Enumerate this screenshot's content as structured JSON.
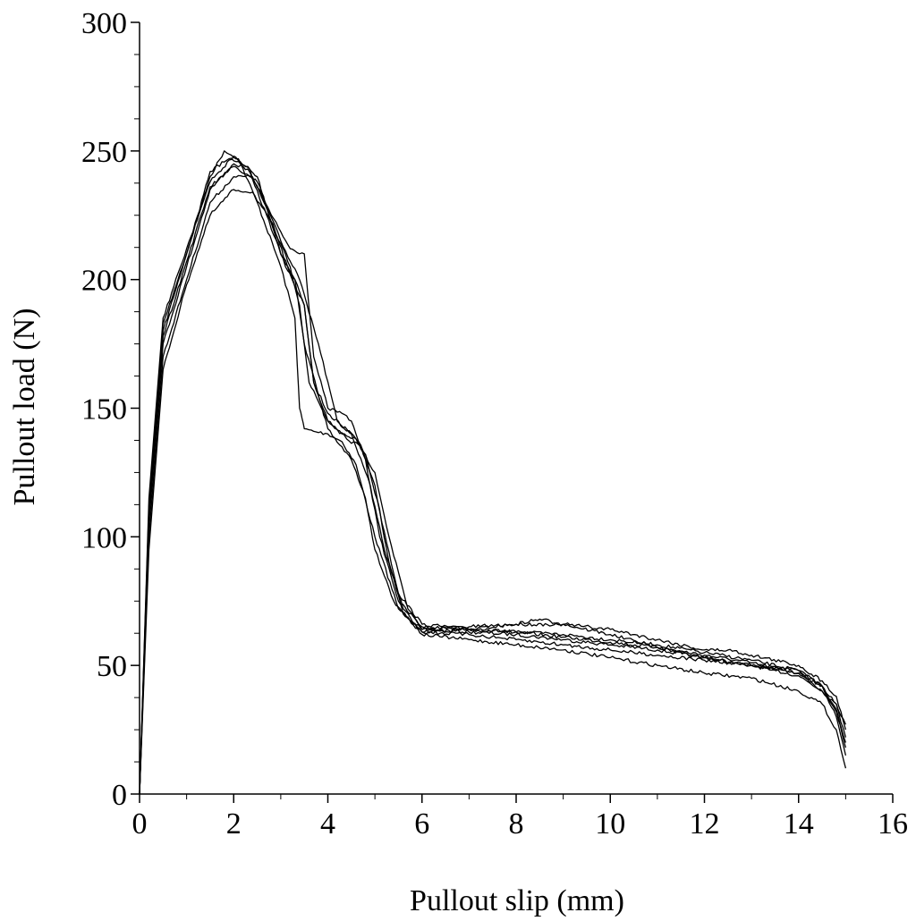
{
  "chart_data": {
    "type": "line",
    "title": "",
    "xlabel": "Pullout slip (mm)",
    "ylabel": "Pullout load (N)",
    "xlim": [
      0,
      16
    ],
    "ylim": [
      0,
      300
    ],
    "x_major_ticks": [
      0,
      2,
      4,
      6,
      8,
      10,
      12,
      14,
      16
    ],
    "y_major_ticks": [
      0,
      50,
      100,
      150,
      200,
      250,
      300
    ],
    "x_tick_labels": [
      "0",
      "2",
      "4",
      "6",
      "8",
      "10",
      "12",
      "14",
      "16"
    ],
    "y_tick_labels": [
      "0",
      "50",
      "100",
      "150",
      "200",
      "250",
      "300"
    ],
    "minor_ticks": true,
    "grid": false,
    "legend": "none",
    "line_color": "#000000",
    "series": [
      {
        "x": [
          0,
          0.2,
          0.5,
          1.0,
          1.5,
          1.8,
          2.1,
          2.5,
          3.0,
          3.3,
          3.4,
          3.5,
          3.7,
          4.0,
          4.3,
          4.6,
          5.0,
          5.5,
          6.0,
          7.0,
          8.0,
          9.0,
          10.0,
          11.0,
          12.0,
          13.0,
          14.0,
          14.5,
          14.8,
          15.0
        ],
        "y": [
          0,
          110,
          180,
          210,
          240,
          250,
          247,
          230,
          205,
          185,
          150,
          142,
          141,
          140,
          137,
          128,
          100,
          72,
          64,
          63,
          62,
          60,
          58,
          56,
          53,
          50,
          46,
          40,
          35,
          27
        ]
      },
      {
        "x": [
          0,
          0.2,
          0.5,
          1.0,
          1.5,
          2.0,
          2.3,
          2.7,
          3.1,
          3.3,
          3.5,
          3.7,
          4.0,
          4.3,
          4.6,
          4.8,
          5.1,
          5.5,
          6.0,
          7.0,
          8.0,
          9.0,
          10.0,
          11.0,
          12.0,
          13.0,
          14.0,
          14.5,
          14.8,
          15.0
        ],
        "y": [
          0,
          105,
          175,
          205,
          235,
          245,
          243,
          225,
          205,
          200,
          190,
          160,
          145,
          140,
          138,
          132,
          110,
          78,
          66,
          64,
          63,
          61,
          59,
          57,
          54,
          51,
          47,
          42,
          33,
          18
        ]
      },
      {
        "x": [
          0,
          0.2,
          0.5,
          1.0,
          1.5,
          2.0,
          2.4,
          2.8,
          3.2,
          3.5,
          3.7,
          4.0,
          4.3,
          4.5,
          4.8,
          5.1,
          5.5,
          6.0,
          7.0,
          8.0,
          9.0,
          10.0,
          11.0,
          12.0,
          13.0,
          14.0,
          14.5,
          14.8,
          15.0
        ],
        "y": [
          0,
          100,
          170,
          200,
          230,
          240,
          240,
          225,
          212,
          210,
          170,
          150,
          148,
          145,
          130,
          100,
          75,
          65,
          64,
          63,
          62,
          60,
          58,
          55,
          52,
          48,
          42,
          30,
          15
        ]
      },
      {
        "x": [
          0,
          0.2,
          0.5,
          1.0,
          1.5,
          2.0,
          2.4,
          2.8,
          3.2,
          3.4,
          3.6,
          4.0,
          4.4,
          4.7,
          5.0,
          5.3,
          5.6,
          6.0,
          7.0,
          8.0,
          8.5,
          9.0,
          10.0,
          11.0,
          12.0,
          13.0,
          14.0,
          14.5,
          14.8,
          15.0
        ],
        "y": [
          0,
          95,
          165,
          198,
          225,
          235,
          234,
          222,
          205,
          190,
          160,
          145,
          138,
          135,
          120,
          90,
          70,
          63,
          64,
          66,
          68,
          66,
          62,
          57,
          53,
          50,
          48,
          42,
          35,
          22
        ]
      },
      {
        "x": [
          0,
          0.2,
          0.5,
          1.0,
          1.5,
          2.0,
          2.5,
          3.0,
          3.3,
          3.5,
          4.0,
          4.3,
          4.5,
          4.8,
          5.0,
          5.4,
          6.0,
          7.0,
          8.0,
          9.0,
          10.0,
          11.0,
          12.0,
          13.0,
          14.0,
          14.5,
          14.8,
          15.0
        ],
        "y": [
          0,
          115,
          185,
          212,
          238,
          248,
          240,
          210,
          200,
          175,
          142,
          135,
          130,
          115,
          95,
          75,
          62,
          60,
          58,
          56,
          53,
          50,
          47,
          45,
          40,
          35,
          25,
          10
        ]
      },
      {
        "x": [
          0,
          0.2,
          0.5,
          1.0,
          1.5,
          2.0,
          2.5,
          3.0,
          3.4,
          3.8,
          4.2,
          4.6,
          5.0,
          5.3,
          5.7,
          6.0,
          7.0,
          8.0,
          9.0,
          10.0,
          11.0,
          12.0,
          12.5,
          13.0,
          14.0,
          14.5,
          14.8,
          15.0
        ],
        "y": [
          0,
          108,
          178,
          207,
          236,
          244,
          238,
          215,
          200,
          175,
          145,
          138,
          125,
          100,
          72,
          64,
          65,
          66,
          66,
          64,
          60,
          56,
          56,
          54,
          50,
          44,
          38,
          25
        ]
      },
      {
        "x": [
          0,
          0.2,
          0.5,
          1.0,
          1.5,
          1.9,
          2.3,
          2.7,
          3.2,
          3.5,
          3.7,
          4.0,
          4.5,
          4.9,
          5.2,
          5.6,
          6.0,
          7.0,
          8.0,
          9.0,
          10.0,
          11.0,
          12.0,
          13.0,
          14.0,
          14.5,
          14.8,
          15.0
        ],
        "y": [
          0,
          112,
          183,
          210,
          242,
          247,
          244,
          228,
          202,
          190,
          160,
          148,
          140,
          120,
          95,
          72,
          63,
          62,
          60,
          58,
          56,
          54,
          52,
          50,
          47,
          40,
          32,
          20
        ]
      }
    ]
  }
}
